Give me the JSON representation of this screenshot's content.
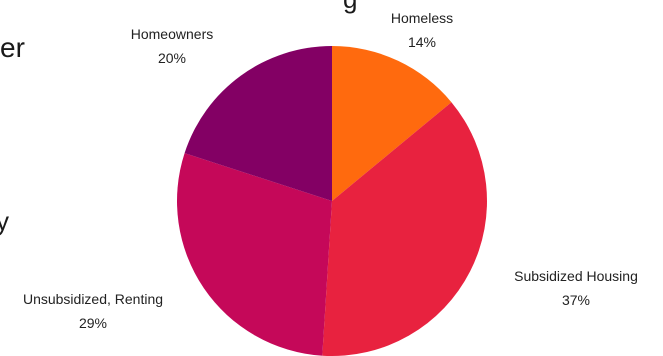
{
  "chart_data": {
    "type": "pie",
    "slices": [
      {
        "label": "Homeless",
        "value": 14,
        "display": "14%",
        "color": "#FF6A0E"
      },
      {
        "label": "Subsidized Housing",
        "value": 37,
        "display": "37%",
        "color": "#E8223F"
      },
      {
        "label": "Unsubsidized, Renting",
        "value": 29,
        "display": "29%",
        "color": "#C50859"
      },
      {
        "label": "Homeowners",
        "value": 20,
        "display": "20%",
        "color": "#830064"
      }
    ],
    "start": "12 o'clock",
    "direction": "clockwise"
  },
  "edge_text": {
    "top_fragment": "g",
    "left_fragment_1": "er",
    "left_fragment_2": "y"
  }
}
